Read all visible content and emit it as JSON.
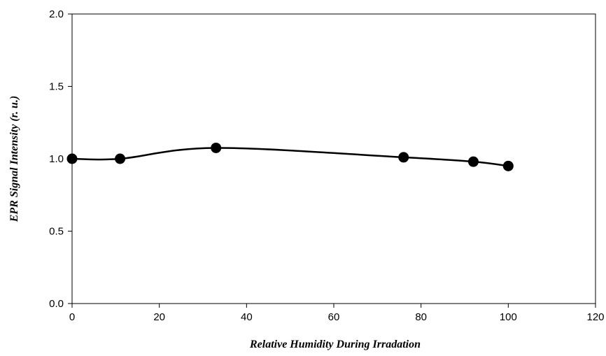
{
  "chart_data": {
    "type": "scatter",
    "title": "",
    "xlabel": "Relative Humidity During Irradation",
    "ylabel": "EPR Signal Intensity (r. u.)",
    "xlim": [
      0,
      120
    ],
    "ylim": [
      0.0,
      2.0
    ],
    "xticks": [
      "0",
      "20",
      "40",
      "60",
      "80",
      "100",
      "120"
    ],
    "yticks": [
      "0.0",
      "0.5",
      "1.0",
      "1.5",
      "2.0"
    ],
    "grid": false,
    "legend": "none",
    "line_style": "smooth",
    "colors": {
      "series": "#000000"
    },
    "series": [
      {
        "x": [
          0,
          11,
          33,
          76,
          92,
          100
        ],
        "y": [
          1.0,
          1.0,
          1.075,
          1.01,
          0.98,
          0.95
        ]
      }
    ]
  }
}
